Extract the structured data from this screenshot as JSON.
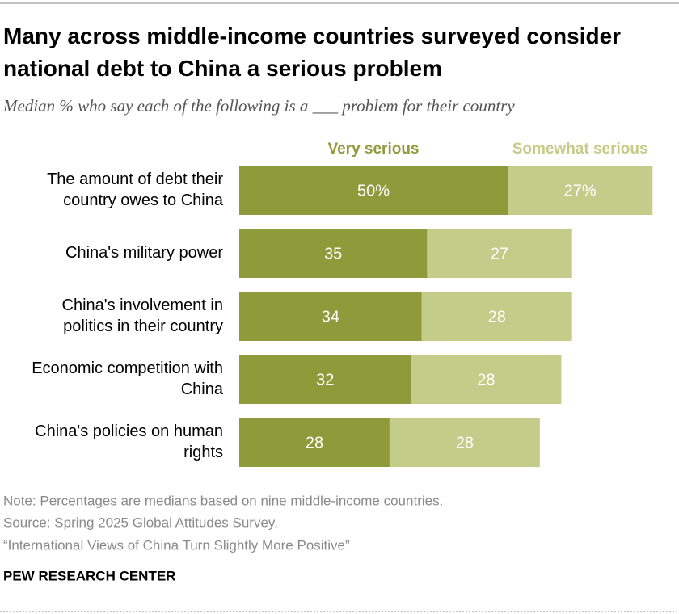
{
  "chart_data": {
    "type": "stacked-bar",
    "title": "Many across middle-income countries surveyed consider national debt to China a serious problem",
    "subtitle": "Median % who say each of the following is a ___ problem for their country",
    "categories": [
      "The amount of debt their country owes to China",
      "China's military power",
      "China's involvement in politics in their country",
      "Economic competition with China",
      "China's policies on human rights"
    ],
    "series": [
      {
        "name": "Very serious",
        "color": "#8f9b3b",
        "values": [
          50,
          35,
          34,
          32,
          28
        ],
        "value_labels": [
          "50%",
          "35",
          "34",
          "32",
          "28"
        ]
      },
      {
        "name": "Somewhat serious",
        "color": "#c3cc88",
        "values": [
          27,
          27,
          28,
          28,
          28
        ],
        "value_labels": [
          "27%",
          "27",
          "28",
          "28",
          "28"
        ]
      }
    ]
  },
  "notes": [
    "Note: Percentages are medians based on nine middle-income countries.",
    "Source: Spring 2025 Global Attitudes Survey.",
    "“International Views of China Turn Slightly More Positive”"
  ],
  "footer": "PEW RESEARCH CENTER"
}
